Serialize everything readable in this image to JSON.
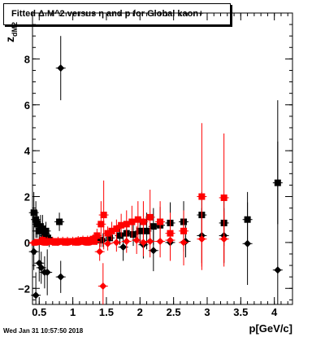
{
  "title": "Fitted Δ M^2 versus η and p for Global kaon+",
  "timestamp": "Wed Jan 31 10:57:50 2018",
  "chart_data": {
    "type": "scatter",
    "xlabel": "p[GeV/c]",
    "ylabel_main": "z",
    "ylabel_sub": "dM2",
    "xlim": [
      0.4,
      4.27
    ],
    "ylim": [
      -2.7,
      10.0
    ],
    "xticks": [
      0.5,
      1,
      1.5,
      2,
      2.5,
      3,
      3.5,
      4
    ],
    "xtick_labels": [
      "0.5",
      "1",
      "1.5",
      "2",
      "2.5",
      "3",
      "3.5",
      "4"
    ],
    "yticks": [
      -2,
      0,
      2,
      4,
      6,
      8
    ],
    "ytick_labels": [
      "−2",
      "0",
      "2",
      "4",
      "6",
      "8"
    ],
    "colors": {
      "black": "#000000",
      "red": "#ff0000"
    },
    "series": [
      {
        "color": "black",
        "marker": "square",
        "points": [
          [
            0.42,
            1.3,
            0.9
          ],
          [
            0.45,
            1.0,
            0.8
          ],
          [
            0.47,
            0.8,
            0.6
          ],
          [
            0.5,
            0.5,
            0.5
          ],
          [
            0.52,
            0.7,
            0.5
          ],
          [
            0.55,
            0.6,
            0.6
          ],
          [
            0.58,
            0.3,
            0.4
          ],
          [
            0.6,
            0.5,
            0.4
          ],
          [
            0.63,
            0.2,
            0.3
          ],
          [
            0.65,
            0.1,
            0.3
          ],
          [
            0.8,
            0.9,
            0.4
          ],
          [
            1.4,
            0.1,
            0.3
          ],
          [
            1.55,
            0.2,
            0.3
          ],
          [
            1.7,
            0.3,
            0.4
          ],
          [
            1.8,
            0.4,
            0.4
          ],
          [
            1.9,
            0.35,
            0.5
          ],
          [
            2.0,
            0.5,
            0.6
          ],
          [
            2.1,
            0.5,
            0.8
          ],
          [
            2.2,
            0.7,
            0.8
          ],
          [
            2.3,
            0.75,
            0.8
          ],
          [
            2.45,
            0.85,
            0.9
          ],
          [
            2.65,
            0.9,
            0.9
          ],
          [
            2.92,
            1.2,
            1.0
          ],
          [
            3.25,
            0.85,
            1.0
          ],
          [
            3.6,
            1.0,
            1.2
          ],
          [
            4.05,
            2.6,
            1.8
          ]
        ]
      },
      {
        "color": "black",
        "marker": "diamond",
        "points": [
          [
            0.42,
            -0.4,
            0.8
          ],
          [
            0.45,
            -2.3,
            1.0
          ],
          [
            0.5,
            -0.9,
            0.8
          ],
          [
            0.53,
            -1.1,
            0.7
          ],
          [
            0.58,
            -1.3,
            0.7
          ],
          [
            0.62,
            -1.3,
            1.0
          ],
          [
            0.82,
            7.6,
            1.4
          ],
          [
            0.82,
            -1.5,
            0.7
          ],
          [
            1.45,
            0.1,
            0.3
          ],
          [
            1.75,
            -0.2,
            0.6
          ],
          [
            2.05,
            -0.1,
            0.6
          ],
          [
            2.2,
            -0.35,
            0.9
          ],
          [
            2.45,
            0.0,
            0.7
          ],
          [
            2.68,
            0.05,
            0.7
          ],
          [
            2.92,
            0.3,
            1.2
          ],
          [
            3.25,
            0.3,
            1.2
          ],
          [
            3.6,
            -0.05,
            1.8
          ],
          [
            4.05,
            -1.2,
            7.4
          ]
        ]
      },
      {
        "color": "red",
        "marker": "square",
        "points": [
          [
            0.55,
            0.1,
            0.2
          ],
          [
            0.62,
            0.05,
            0.2
          ],
          [
            0.7,
            0.05,
            0.2
          ],
          [
            0.78,
            0.05,
            0.2
          ],
          [
            0.85,
            0.05,
            0.2
          ],
          [
            0.92,
            0.05,
            0.2
          ],
          [
            1.0,
            0.05,
            0.2
          ],
          [
            1.08,
            0.08,
            0.2
          ],
          [
            1.15,
            0.1,
            0.2
          ],
          [
            1.22,
            0.1,
            0.2
          ],
          [
            1.3,
            0.15,
            0.2
          ],
          [
            1.36,
            0.3,
            0.3
          ],
          [
            1.42,
            0.8,
            1.0
          ],
          [
            1.46,
            1.2,
            1.5
          ],
          [
            1.52,
            0.4,
            0.3
          ],
          [
            1.58,
            0.5,
            0.4
          ],
          [
            1.65,
            0.6,
            0.4
          ],
          [
            1.72,
            0.75,
            0.5
          ],
          [
            1.8,
            0.8,
            0.6
          ],
          [
            1.88,
            0.9,
            0.7
          ],
          [
            1.97,
            1.0,
            0.8
          ],
          [
            2.05,
            0.9,
            0.9
          ],
          [
            2.15,
            1.1,
            1.2
          ],
          [
            2.3,
            0.9,
            0.9
          ],
          [
            2.45,
            0.4,
            0.9
          ],
          [
            2.65,
            0.5,
            0.9
          ],
          [
            2.92,
            2.0,
            3.2
          ],
          [
            3.25,
            1.95,
            2.8
          ]
        ]
      },
      {
        "color": "red",
        "marker": "diamond",
        "points": [
          [
            1.4,
            -0.4,
            0.4
          ],
          [
            1.45,
            -1.9,
            1.0
          ],
          [
            1.52,
            -0.05,
            0.3
          ],
          [
            1.65,
            0.0,
            0.4
          ],
          [
            1.8,
            0.05,
            0.5
          ],
          [
            1.95,
            0.1,
            0.6
          ],
          [
            2.05,
            0.0,
            0.6
          ],
          [
            2.15,
            0.05,
            0.7
          ],
          [
            2.3,
            0.05,
            0.7
          ],
          [
            2.45,
            0.1,
            0.9
          ],
          [
            2.65,
            0.0,
            1.0
          ],
          [
            2.92,
            0.15,
            1.2
          ],
          [
            3.25,
            0.15,
            1.2
          ]
        ]
      },
      {
        "color": "red",
        "marker": "square-small",
        "dense_band": true,
        "points": [
          [
            0.43,
            0.0,
            0.1
          ],
          [
            0.46,
            0.05,
            0.1
          ],
          [
            0.49,
            0.0,
            0.1
          ],
          [
            0.52,
            0.05,
            0.1
          ],
          [
            0.58,
            0.0,
            0.1
          ],
          [
            0.66,
            0.02,
            0.1
          ],
          [
            0.74,
            0.0,
            0.1
          ],
          [
            0.82,
            0.02,
            0.1
          ],
          [
            0.9,
            0.0,
            0.1
          ],
          [
            0.98,
            0.02,
            0.1
          ],
          [
            1.05,
            0.0,
            0.1
          ],
          [
            1.12,
            0.02,
            0.1
          ],
          [
            1.19,
            0.05,
            0.1
          ],
          [
            1.26,
            0.05,
            0.1
          ],
          [
            1.33,
            0.05,
            0.1
          ]
        ]
      }
    ]
  }
}
